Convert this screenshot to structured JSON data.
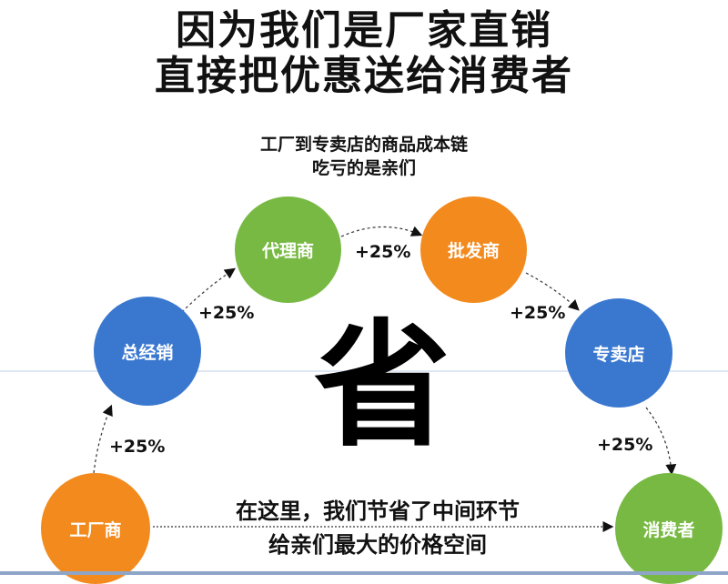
{
  "title": {
    "line1": "因为我们是厂家直销",
    "line2": "直接把优惠送给消费者"
  },
  "subtitle": {
    "line1": "工厂到专卖店的商品成本链",
    "line2": "吃亏的是亲们"
  },
  "nodes": [
    {
      "label": "工厂商",
      "color": "#f28a1e"
    },
    {
      "label": "总经销",
      "color": "#3a78cf"
    },
    {
      "label": "代理商",
      "color": "#78b943"
    },
    {
      "label": "批发商",
      "color": "#f28a1e"
    },
    {
      "label": "专卖店",
      "color": "#3a78cf"
    },
    {
      "label": "消费者",
      "color": "#78b943"
    }
  ],
  "markups": [
    "+25%",
    "+25%",
    "+25%",
    "+25%",
    "+25%"
  ],
  "center_char": "省",
  "bottom": {
    "line1": "在这里，我们节省了中间环节",
    "line2": "给亲们最大的价格空间"
  }
}
